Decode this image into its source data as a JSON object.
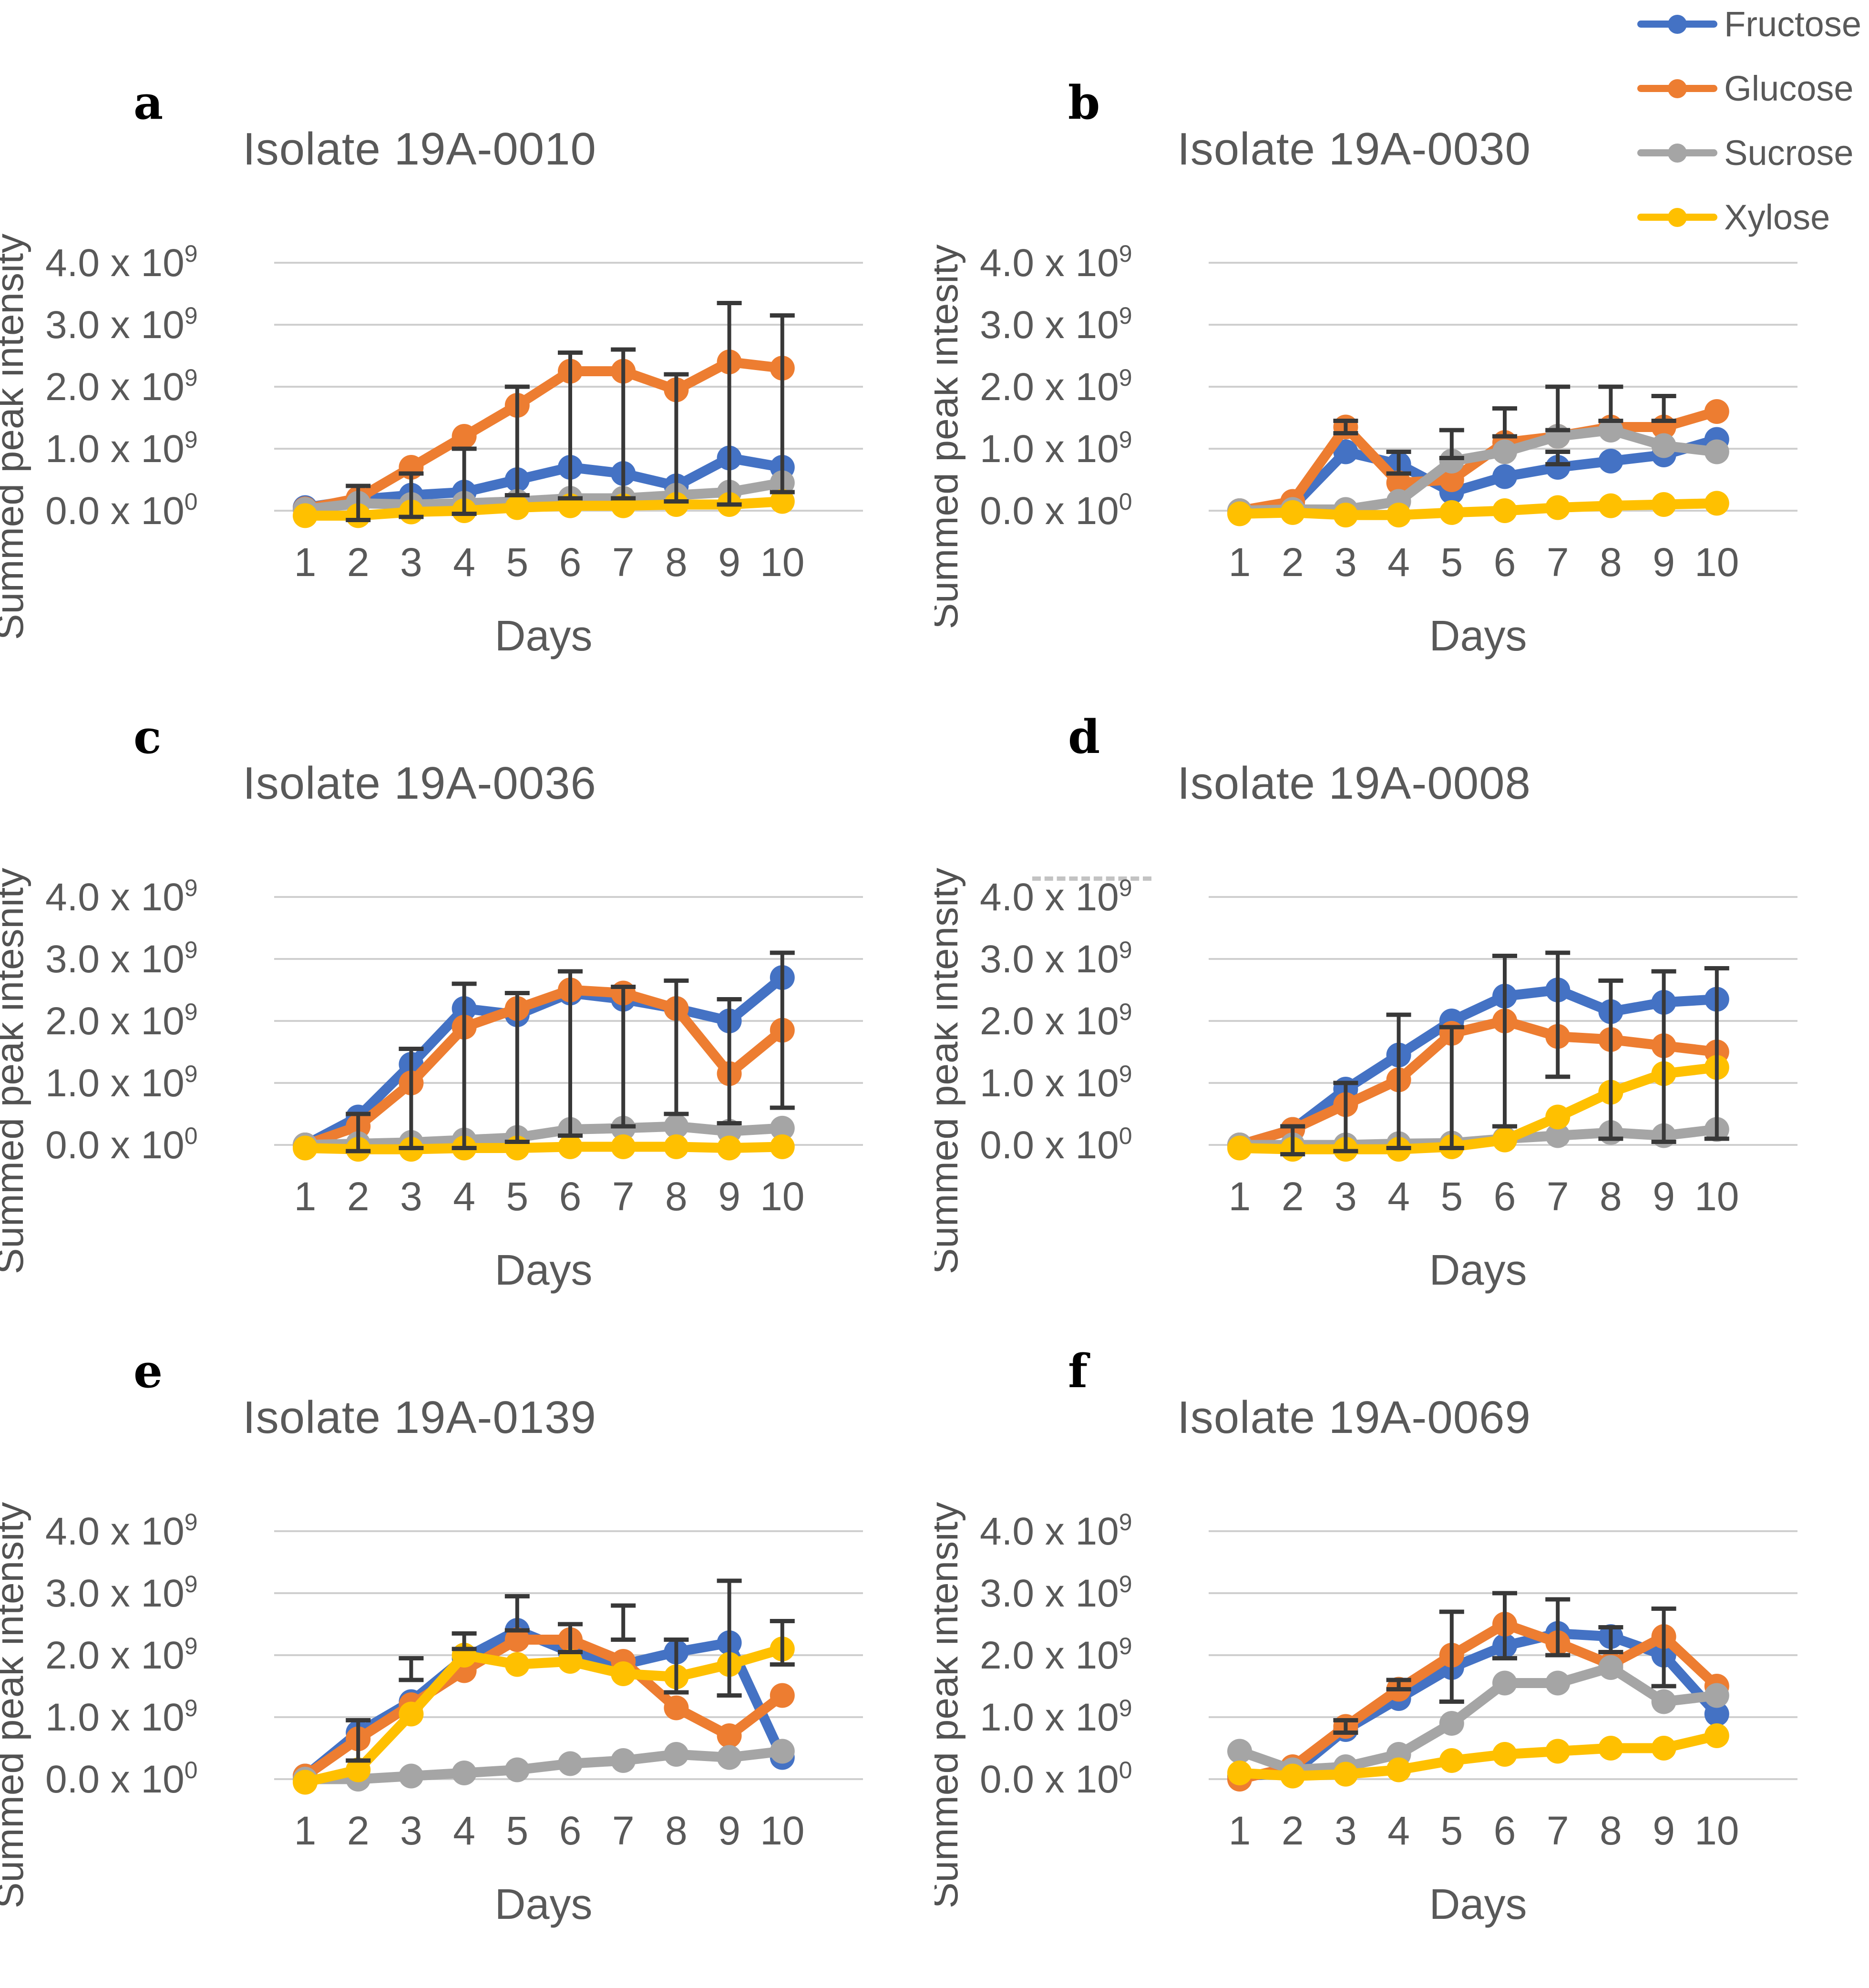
{
  "figure": {
    "background": "#ffffff",
    "x_label": "Days",
    "x_ticks": [
      "1",
      "2",
      "3",
      "4",
      "5",
      "6",
      "7",
      "8",
      "9",
      "10"
    ],
    "y_ticks": [
      {
        "base": "4.0 x 10",
        "exp": "9"
      },
      {
        "base": "3.0 x 10",
        "exp": "9"
      },
      {
        "base": "2.0 x 10",
        "exp": "9"
      },
      {
        "base": "1.0 x 10",
        "exp": "9"
      },
      {
        "base": "0.0 x 10",
        "exp": "0"
      }
    ],
    "value_unit": "x10^9 summed peak intensity",
    "grid_color": "#cfcfcf",
    "text_color": "#595959",
    "error_bar_color": "#383838",
    "legend": [
      {
        "label": "Fructose",
        "color": "#4472C4"
      },
      {
        "label": "Glucose",
        "color": "#ED7D31"
      },
      {
        "label": "Sucrose",
        "color": "#A5A5A5"
      },
      {
        "label": "Xylose",
        "color": "#FFC000"
      }
    ]
  },
  "chart_data": [
    {
      "type": "line",
      "letter": "a",
      "title": "Isolate 19A-0010",
      "ylabel": "Summed peak intensity",
      "xlabel": "Days",
      "x": [
        1,
        2,
        3,
        4,
        5,
        6,
        7,
        8,
        9,
        10
      ],
      "ylim": [
        0,
        4000000000.0
      ],
      "values_scale": 1000000000.0,
      "series": [
        {
          "name": "Fructose",
          "color": "#4472C4",
          "values": [
            0.05,
            0.18,
            0.25,
            0.3,
            0.5,
            0.7,
            0.6,
            0.4,
            0.85,
            0.7
          ]
        },
        {
          "name": "Glucose",
          "color": "#ED7D31",
          "values": [
            0.03,
            0.2,
            0.7,
            1.2,
            1.7,
            2.25,
            2.25,
            1.95,
            2.4,
            2.3
          ]
        },
        {
          "name": "Sucrose",
          "color": "#A5A5A5",
          "values": [
            0.02,
            0.12,
            0.1,
            0.12,
            0.15,
            0.2,
            0.2,
            0.25,
            0.3,
            0.45
          ]
        },
        {
          "name": "Xylose",
          "color": "#FFC000",
          "values": [
            -0.08,
            -0.08,
            -0.02,
            0,
            0.05,
            0.08,
            0.08,
            0.1,
            0.1,
            0.15
          ]
        }
      ],
      "error_bars": [
        {
          "day": 2,
          "lo": -0.15,
          "hi": 0.4
        },
        {
          "day": 3,
          "lo": -0.1,
          "hi": 0.6
        },
        {
          "day": 4,
          "lo": -0.05,
          "hi": 1.0
        },
        {
          "day": 5,
          "lo": 0.25,
          "hi": 2.0
        },
        {
          "day": 6,
          "lo": 0.2,
          "hi": 2.55
        },
        {
          "day": 7,
          "lo": 0.2,
          "hi": 2.6
        },
        {
          "day": 8,
          "lo": 0.15,
          "hi": 2.2
        },
        {
          "day": 9,
          "lo": 0.1,
          "hi": 3.35
        },
        {
          "day": 10,
          "lo": 0.3,
          "hi": 3.15
        }
      ]
    },
    {
      "type": "line",
      "letter": "b",
      "title": "Isolate 19A-0030",
      "ylabel": "Summed peak intesity",
      "xlabel": "Days",
      "x": [
        1,
        2,
        3,
        4,
        5,
        6,
        7,
        8,
        9,
        10
      ],
      "ylim": [
        0,
        4000000000.0
      ],
      "values_scale": 1000000000.0,
      "series": [
        {
          "name": "Fructose",
          "color": "#4472C4",
          "values": [
            0,
            0.07,
            0.95,
            0.75,
            0.3,
            0.55,
            0.7,
            0.8,
            0.9,
            1.15
          ]
        },
        {
          "name": "Glucose",
          "color": "#ED7D31",
          "values": [
            0,
            0.15,
            1.35,
            0.45,
            0.5,
            1.1,
            1.2,
            1.35,
            1.35,
            1.6
          ]
        },
        {
          "name": "Sucrose",
          "color": "#A5A5A5",
          "values": [
            0,
            0.02,
            0.02,
            0.15,
            0.8,
            0.95,
            1.2,
            1.3,
            1.05,
            0.95
          ]
        },
        {
          "name": "Xylose",
          "color": "#FFC000",
          "values": [
            -0.05,
            -0.03,
            -0.07,
            -0.07,
            -0.03,
            0,
            0.05,
            0.08,
            0.1,
            0.12
          ]
        }
      ],
      "error_bars": [
        {
          "day": 3,
          "lo": 1.25,
          "hi": 1.45
        },
        {
          "day": 4,
          "lo": 0.6,
          "hi": 0.95
        },
        {
          "day": 5,
          "lo": 0.85,
          "hi": 1.3
        },
        {
          "day": 6,
          "lo": 1.2,
          "hi": 1.65
        },
        {
          "day": 7,
          "lo": 1.3,
          "hi": 2.0
        },
        {
          "day": 7,
          "lo": 0.75,
          "hi": 0.95
        },
        {
          "day": 8,
          "lo": 1.45,
          "hi": 2.0
        },
        {
          "day": 9,
          "lo": 1.45,
          "hi": 1.85
        }
      ]
    },
    {
      "type": "line",
      "letter": "c",
      "title": "Isolate 19A-0036",
      "ylabel": "Summed peak intesnity",
      "xlabel": "Days",
      "x": [
        1,
        2,
        3,
        4,
        5,
        6,
        7,
        8,
        9,
        10
      ],
      "ylim": [
        0,
        4000000000.0
      ],
      "values_scale": 1000000000.0,
      "series": [
        {
          "name": "Fructose",
          "color": "#4472C4",
          "values": [
            0,
            0.45,
            1.3,
            2.2,
            2.1,
            2.45,
            2.35,
            2.2,
            2.0,
            2.7
          ]
        },
        {
          "name": "Glucose",
          "color": "#ED7D31",
          "values": [
            0,
            0.3,
            1.0,
            1.9,
            2.2,
            2.5,
            2.45,
            2.2,
            1.15,
            1.85
          ]
        },
        {
          "name": "Sucrose",
          "color": "#A5A5A5",
          "values": [
            0,
            0.02,
            0.04,
            0.08,
            0.12,
            0.25,
            0.27,
            0.3,
            0.22,
            0.27
          ]
        },
        {
          "name": "Xylose",
          "color": "#FFC000",
          "values": [
            -0.05,
            -0.07,
            -0.07,
            -0.05,
            -0.05,
            -0.03,
            -0.03,
            -0.03,
            -0.05,
            -0.03
          ]
        }
      ],
      "error_bars": [
        {
          "day": 2,
          "lo": -0.1,
          "hi": 0.5
        },
        {
          "day": 3,
          "lo": -0.05,
          "hi": 1.55
        },
        {
          "day": 4,
          "lo": -0.05,
          "hi": 2.6
        },
        {
          "day": 5,
          "lo": 0.05,
          "hi": 2.45
        },
        {
          "day": 6,
          "lo": 0.15,
          "hi": 2.8
        },
        {
          "day": 7,
          "lo": 0.3,
          "hi": 2.55
        },
        {
          "day": 8,
          "lo": 0.5,
          "hi": 2.65
        },
        {
          "day": 9,
          "lo": 0.35,
          "hi": 2.35
        },
        {
          "day": 10,
          "lo": 0.6,
          "hi": 3.1
        }
      ]
    },
    {
      "type": "line",
      "letter": "d",
      "title": "Isolate 19A-0008",
      "ylabel": "Summed peak intensity",
      "xlabel": "Days",
      "x": [
        1,
        2,
        3,
        4,
        5,
        6,
        7,
        8,
        9,
        10
      ],
      "ylim": [
        0,
        4000000000.0
      ],
      "values_scale": 1000000000.0,
      "series": [
        {
          "name": "Fructose",
          "color": "#4472C4",
          "values": [
            0,
            0.25,
            0.9,
            1.45,
            2.0,
            2.4,
            2.5,
            2.15,
            2.3,
            2.35
          ]
        },
        {
          "name": "Glucose",
          "color": "#ED7D31",
          "values": [
            0,
            0.25,
            0.65,
            1.05,
            1.8,
            2.0,
            1.75,
            1.7,
            1.6,
            1.5
          ]
        },
        {
          "name": "Sucrose",
          "color": "#A5A5A5",
          "values": [
            0,
            0,
            0,
            0.02,
            0.03,
            0.1,
            0.15,
            0.2,
            0.15,
            0.25
          ]
        },
        {
          "name": "Xylose",
          "color": "#FFC000",
          "values": [
            -0.05,
            -0.07,
            -0.07,
            -0.07,
            -0.03,
            0.08,
            0.45,
            0.85,
            1.15,
            1.25
          ]
        }
      ],
      "error_bars": [
        {
          "day": 2,
          "lo": -0.15,
          "hi": 0.3
        },
        {
          "day": 3,
          "lo": -0.1,
          "hi": 1.0
        },
        {
          "day": 4,
          "lo": -0.05,
          "hi": 2.1
        },
        {
          "day": 5,
          "lo": -0.05,
          "hi": 1.9
        },
        {
          "day": 6,
          "lo": 0.3,
          "hi": 3.05
        },
        {
          "day": 7,
          "lo": 1.1,
          "hi": 3.1
        },
        {
          "day": 8,
          "lo": 0.1,
          "hi": 2.65
        },
        {
          "day": 9,
          "lo": 0.05,
          "hi": 2.8
        },
        {
          "day": 10,
          "lo": 0.1,
          "hi": 2.85
        }
      ]
    },
    {
      "type": "line",
      "letter": "e",
      "title": "Isolate 19A-0139",
      "ylabel": "Summed peak intensity",
      "xlabel": "Days",
      "x": [
        1,
        2,
        3,
        4,
        5,
        6,
        7,
        8,
        9,
        10
      ],
      "ylim": [
        0,
        4000000000.0
      ],
      "values_scale": 1000000000.0,
      "series": [
        {
          "name": "Fructose",
          "color": "#4472C4",
          "values": [
            0.05,
            0.75,
            1.25,
            1.95,
            2.4,
            2.05,
            1.85,
            2.05,
            2.2,
            0.35
          ]
        },
        {
          "name": "Glucose",
          "color": "#ED7D31",
          "values": [
            0.05,
            0.65,
            1.2,
            1.75,
            2.25,
            2.25,
            1.9,
            1.15,
            0.7,
            1.35
          ]
        },
        {
          "name": "Sucrose",
          "color": "#A5A5A5",
          "values": [
            0,
            0,
            0.05,
            0.1,
            0.15,
            0.25,
            0.3,
            0.4,
            0.35,
            0.45
          ]
        },
        {
          "name": "Xylose",
          "color": "#FFC000",
          "values": [
            -0.05,
            0.15,
            1.05,
            2.0,
            1.85,
            1.9,
            1.7,
            1.65,
            1.85,
            2.1
          ]
        }
      ],
      "error_bars": [
        {
          "day": 2,
          "lo": 0.3,
          "hi": 0.95
        },
        {
          "day": 3,
          "lo": 1.6,
          "hi": 1.95
        },
        {
          "day": 4,
          "lo": 2.1,
          "hi": 2.35
        },
        {
          "day": 5,
          "lo": 2.4,
          "hi": 2.95
        },
        {
          "day": 6,
          "lo": 2.05,
          "hi": 2.5
        },
        {
          "day": 7,
          "lo": 2.25,
          "hi": 2.8
        },
        {
          "day": 8,
          "lo": 1.4,
          "hi": 2.25
        },
        {
          "day": 9,
          "lo": 1.35,
          "hi": 3.2
        },
        {
          "day": 10,
          "lo": 1.85,
          "hi": 2.55
        }
      ]
    },
    {
      "type": "line",
      "letter": "f",
      "title": "Isolate 19A-0069",
      "ylabel": "Summed peak intensity",
      "xlabel": "Days",
      "x": [
        1,
        2,
        3,
        4,
        5,
        6,
        7,
        8,
        9,
        10
      ],
      "ylim": [
        0,
        4000000000.0
      ],
      "values_scale": 1000000000.0,
      "series": [
        {
          "name": "Fructose",
          "color": "#4472C4",
          "values": [
            0.05,
            0.1,
            0.8,
            1.3,
            1.8,
            2.15,
            2.35,
            2.3,
            2.0,
            1.05
          ]
        },
        {
          "name": "Glucose",
          "color": "#ED7D31",
          "values": [
            0,
            0.2,
            0.85,
            1.45,
            2.0,
            2.5,
            2.2,
            1.85,
            2.3,
            1.5
          ]
        },
        {
          "name": "Sucrose",
          "color": "#A5A5A5",
          "values": [
            0.45,
            0.15,
            0.2,
            0.4,
            0.9,
            1.55,
            1.55,
            1.8,
            1.25,
            1.35
          ]
        },
        {
          "name": "Xylose",
          "color": "#FFC000",
          "values": [
            0.1,
            0.05,
            0.08,
            0.15,
            0.3,
            0.4,
            0.45,
            0.5,
            0.5,
            0.7
          ]
        }
      ],
      "error_bars": [
        {
          "day": 3,
          "lo": 0.75,
          "hi": 0.95
        },
        {
          "day": 4,
          "lo": 1.45,
          "hi": 1.6
        },
        {
          "day": 5,
          "lo": 1.25,
          "hi": 2.7
        },
        {
          "day": 6,
          "lo": 1.95,
          "hi": 3.0
        },
        {
          "day": 7,
          "lo": 2.0,
          "hi": 2.9
        },
        {
          "day": 8,
          "lo": 2.05,
          "hi": 2.45
        },
        {
          "day": 9,
          "lo": 1.5,
          "hi": 2.75
        }
      ]
    }
  ]
}
